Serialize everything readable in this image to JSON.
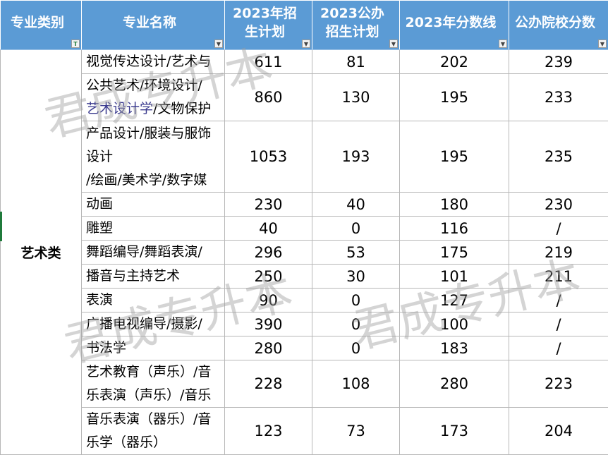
{
  "columns": [
    "专业类别",
    "专业名称",
    "2023年招\n生计划",
    "2023公办\n招生计划",
    "2023年分数线",
    "公办院校分数"
  ],
  "filter_icon": "dropdown-arrow-icon",
  "category": "艺术类",
  "rows": [
    {
      "name": "视觉传达设计/艺术与",
      "plan": "611",
      "public_plan": "81",
      "score": "202",
      "public_score": "239"
    },
    {
      "name": "公共艺术/环境设计/\n艺术设计学/文物保护",
      "plan": "860",
      "public_plan": "130",
      "score": "195",
      "public_score": "233"
    },
    {
      "name": "产品设计/服装与服饰\n设计\n/绘画/美术学/数字媒",
      "plan": "1053",
      "public_plan": "193",
      "score": "195",
      "public_score": "235"
    },
    {
      "name": "动画",
      "plan": "230",
      "public_plan": "40",
      "score": "180",
      "public_score": "230"
    },
    {
      "name": "雕塑",
      "plan": "40",
      "public_plan": "0",
      "score": "116",
      "public_score": "/"
    },
    {
      "name": "舞蹈编导/舞蹈表演/",
      "plan": "296",
      "public_plan": "53",
      "score": "175",
      "public_score": "219"
    },
    {
      "name": "播音与主持艺术",
      "plan": "250",
      "public_plan": "30",
      "score": "101",
      "public_score": "211"
    },
    {
      "name": "表演",
      "plan": "90",
      "public_plan": "0",
      "score": "127",
      "public_score": "/"
    },
    {
      "name": "广播电视编导/摄影/",
      "plan": "390",
      "public_plan": "0",
      "score": "100",
      "public_score": "/"
    },
    {
      "name": "书法学",
      "plan": "280",
      "public_plan": "0",
      "score": "183",
      "public_score": "/"
    },
    {
      "name": "艺术教育（声乐）/音\n乐表演（声乐）/音乐",
      "plan": "228",
      "public_plan": "108",
      "score": "280",
      "public_score": "223"
    },
    {
      "name": "音乐表演（器乐）/音\n乐学（器乐）",
      "plan": "123",
      "public_plan": "73",
      "score": "173",
      "public_score": "204"
    }
  ],
  "watermark": "君成专升本"
}
